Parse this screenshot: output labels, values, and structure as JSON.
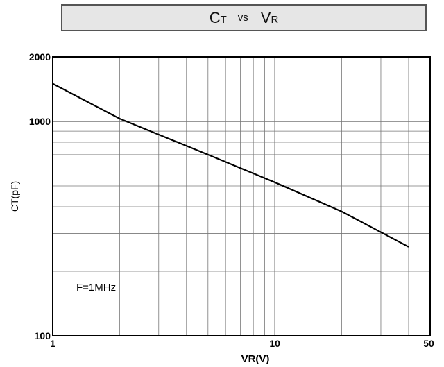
{
  "chart_data": {
    "type": "line",
    "title": {
      "main_1": "C",
      "sub_1": "T",
      "vs": "vs",
      "main_2": "V",
      "sub_2": "R"
    },
    "xlabel": "VR(V)",
    "ylabel": "CT(pF)",
    "x_scale": "log",
    "y_scale": "log",
    "xlim": [
      1,
      50
    ],
    "ylim": [
      100,
      2000
    ],
    "x_ticks": [
      {
        "value": 1,
        "label": "1"
      },
      {
        "value": 10,
        "label": "10"
      },
      {
        "value": 50,
        "label": "50"
      }
    ],
    "y_ticks": [
      {
        "value": 100,
        "label": "100"
      },
      {
        "value": 1000,
        "label": "1000"
      },
      {
        "value": 2000,
        "label": "2000"
      }
    ],
    "grid": true,
    "annotation": "F=1MHz",
    "series": [
      {
        "x": [
          1,
          2,
          5,
          10,
          20,
          40
        ],
        "y": [
          1500,
          1030,
          700,
          520,
          380,
          260
        ]
      }
    ]
  },
  "colors": {
    "title_bg": "#e6e6e6",
    "line": "#000000",
    "grid": "#777777"
  }
}
